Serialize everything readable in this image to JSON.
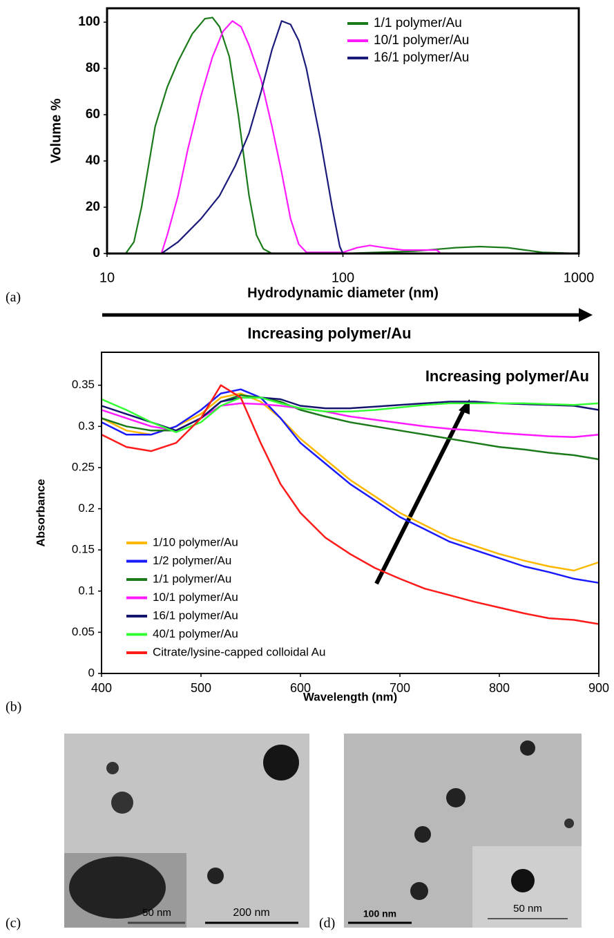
{
  "chart_data": [
    {
      "type": "line",
      "xlabel": "Hydrodynamic diameter (nm)",
      "ylabel": "Volume %",
      "xlog": true,
      "xlim": [
        10,
        1000
      ],
      "xticks": [
        10,
        100,
        1000
      ],
      "ylim": [
        0,
        106
      ],
      "yticks": [
        0,
        20,
        40,
        60,
        80,
        100
      ],
      "legend": "upper right",
      "series": [
        {
          "name": "1/1 polymer/Au",
          "color": "#1a7a1a",
          "x": [
            10,
            12,
            13,
            14,
            15,
            16,
            18,
            20,
            23,
            26,
            28,
            30,
            33,
            36,
            38,
            40,
            43,
            46,
            50,
            100,
            200,
            300,
            380,
            500,
            700,
            1000
          ],
          "values": [
            0,
            0,
            5,
            20,
            38,
            55,
            72,
            83,
            95,
            101.5,
            102,
            98,
            85,
            60,
            42,
            25,
            8,
            2,
            0,
            0,
            1,
            2.5,
            3,
            2.5,
            0.5,
            0
          ]
        },
        {
          "name": "10/1 polymer/Au",
          "color": "#ff1aff",
          "x": [
            17,
            18,
            20,
            22,
            25,
            28,
            31,
            34,
            37,
            40,
            45,
            50,
            55,
            60,
            65,
            70,
            100,
            115,
            130,
            150,
            180,
            250,
            260
          ],
          "values": [
            0,
            8,
            25,
            45,
            68,
            85,
            96,
            100.5,
            98,
            90,
            75,
            55,
            35,
            15,
            4,
            0.5,
            0.5,
            2.5,
            3.5,
            2.5,
            1.5,
            1.5,
            0
          ]
        },
        {
          "name": "16/1 polymer/Au",
          "color": "#1a1a7a",
          "x": [
            17,
            20,
            25,
            30,
            35,
            40,
            45,
            50,
            55,
            60,
            65,
            70,
            80,
            90,
            97,
            100
          ],
          "values": [
            0,
            5,
            15,
            25,
            38,
            52,
            70,
            88,
            100.5,
            99,
            92,
            80,
            50,
            20,
            3,
            0
          ]
        }
      ]
    },
    {
      "type": "line",
      "xlabel": "Wavelength (nm)",
      "ylabel": "Absorbance",
      "annotation": "Increasing polymer/Au",
      "xlim": [
        400,
        900
      ],
      "xticks": [
        400,
        500,
        600,
        700,
        800,
        900
      ],
      "ylim": [
        0,
        0.39
      ],
      "yticks": [
        0,
        0.05,
        0.1,
        0.15,
        0.2,
        0.25,
        0.3,
        0.35
      ],
      "legend": "lower left",
      "x": [
        400,
        425,
        450,
        475,
        500,
        520,
        540,
        560,
        580,
        600,
        625,
        650,
        675,
        700,
        725,
        750,
        775,
        800,
        825,
        850,
        875,
        900
      ],
      "series": [
        {
          "name": "1/10 polymer/Au",
          "color": "#ffb800",
          "values": [
            0.31,
            0.295,
            0.29,
            0.3,
            0.315,
            0.335,
            0.34,
            0.33,
            0.31,
            0.285,
            0.26,
            0.235,
            0.215,
            0.195,
            0.18,
            0.165,
            0.155,
            0.145,
            0.137,
            0.13,
            0.125,
            0.135
          ]
        },
        {
          "name": "1/2 polymer/Au",
          "color": "#1a1aff",
          "values": [
            0.305,
            0.29,
            0.29,
            0.3,
            0.32,
            0.34,
            0.345,
            0.335,
            0.31,
            0.28,
            0.255,
            0.23,
            0.21,
            0.19,
            0.175,
            0.16,
            0.15,
            0.14,
            0.13,
            0.123,
            0.115,
            0.11
          ]
        },
        {
          "name": "1/1 polymer/Au",
          "color": "#1a7a1a",
          "values": [
            0.31,
            0.3,
            0.295,
            0.295,
            0.31,
            0.33,
            0.338,
            0.335,
            0.33,
            0.32,
            0.312,
            0.305,
            0.3,
            0.295,
            0.29,
            0.285,
            0.28,
            0.275,
            0.272,
            0.268,
            0.265,
            0.26
          ]
        },
        {
          "name": "10/1 polymer/Au",
          "color": "#ff1aff",
          "values": [
            0.32,
            0.31,
            0.3,
            0.295,
            0.31,
            0.325,
            0.328,
            0.327,
            0.325,
            0.322,
            0.318,
            0.312,
            0.308,
            0.304,
            0.3,
            0.297,
            0.295,
            0.292,
            0.29,
            0.288,
            0.287,
            0.29
          ]
        },
        {
          "name": "16/1 polymer/Au",
          "color": "#14146e",
          "values": [
            0.325,
            0.315,
            0.305,
            0.295,
            0.31,
            0.33,
            0.335,
            0.335,
            0.333,
            0.325,
            0.322,
            0.322,
            0.324,
            0.326,
            0.328,
            0.33,
            0.33,
            0.328,
            0.327,
            0.326,
            0.325,
            0.32
          ]
        },
        {
          "name": "40/1 polymer/Au",
          "color": "#33ff33",
          "values": [
            0.333,
            0.32,
            0.305,
            0.293,
            0.305,
            0.325,
            0.335,
            0.335,
            0.328,
            0.322,
            0.318,
            0.318,
            0.32,
            0.323,
            0.326,
            0.328,
            0.328,
            0.328,
            0.328,
            0.327,
            0.326,
            0.328
          ]
        },
        {
          "name": "Citrate/lysine-capped colloidal Au",
          "color": "#ff1a1a",
          "values": [
            0.29,
            0.275,
            0.27,
            0.28,
            0.31,
            0.35,
            0.335,
            0.28,
            0.23,
            0.195,
            0.165,
            0.145,
            0.128,
            0.115,
            0.103,
            0.095,
            0.087,
            0.08,
            0.073,
            0.067,
            0.065,
            0.06
          ]
        }
      ]
    }
  ],
  "figure": {
    "panel_labels": [
      "(a)",
      "(b)",
      "(c)",
      "(d)"
    ],
    "arrow_label": "Increasing polymer/Au",
    "scale_bars": [
      "50 nm",
      "200 nm",
      "100 nm",
      "50 nm"
    ]
  }
}
